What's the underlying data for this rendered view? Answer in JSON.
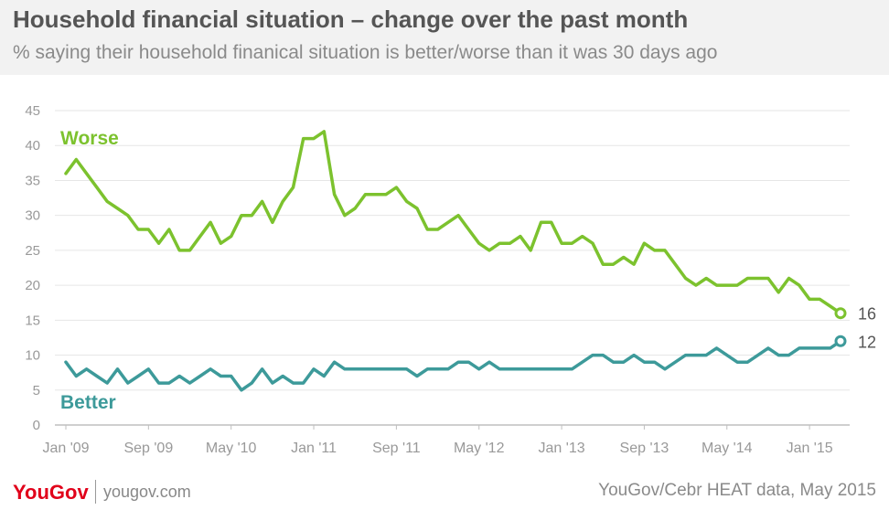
{
  "header": {
    "title": "Household financial situation – change over the past month",
    "subtitle": "% saying their household finanical situation is better/worse than it was 30 days ago"
  },
  "footer": {
    "logo": "YouGov",
    "site": "yougov.com",
    "source": "YouGov/Cebr HEAT data, May 2015"
  },
  "colors": {
    "worse": "#7cc22e",
    "better": "#3d9a9a",
    "grid": "#e6e6e6",
    "axis_text": "#999999"
  },
  "chart_data": {
    "type": "line",
    "x_tick_labels": [
      "Jan '09",
      "Sep '09",
      "May '10",
      "Jan '11",
      "Sep '11",
      "May '12",
      "Jan '13",
      "Sep '13",
      "May '14",
      "Jan '15"
    ],
    "x_start": "Jan 2009",
    "x_end": "May 2015",
    "ylim": [
      0,
      45
    ],
    "y_ticks": [
      0,
      5,
      10,
      15,
      20,
      25,
      30,
      35,
      40,
      45
    ],
    "grid": true,
    "series": [
      {
        "name": "Worse",
        "color": "#7cc22e",
        "end_label": "16",
        "values": [
          36,
          38,
          36,
          34,
          32,
          31,
          30,
          28,
          28,
          26,
          28,
          25,
          25,
          27,
          29,
          26,
          27,
          30,
          30,
          32,
          29,
          32,
          34,
          41,
          41,
          42,
          33,
          30,
          31,
          33,
          33,
          33,
          34,
          32,
          31,
          28,
          28,
          29,
          30,
          28,
          26,
          25,
          26,
          26,
          27,
          25,
          29,
          29,
          26,
          26,
          27,
          26,
          23,
          23,
          24,
          23,
          26,
          25,
          25,
          23,
          21,
          20,
          21,
          20,
          20,
          20,
          21,
          21,
          21,
          19,
          21,
          20,
          18,
          18,
          17,
          16
        ]
      },
      {
        "name": "Better",
        "color": "#3d9a9a",
        "end_label": "12",
        "values": [
          9,
          7,
          8,
          7,
          6,
          8,
          6,
          7,
          8,
          6,
          6,
          7,
          6,
          7,
          8,
          7,
          7,
          5,
          6,
          8,
          6,
          7,
          6,
          6,
          8,
          7,
          9,
          8,
          8,
          8,
          8,
          8,
          8,
          8,
          7,
          8,
          8,
          8,
          9,
          9,
          8,
          9,
          8,
          8,
          8,
          8,
          8,
          8,
          8,
          8,
          9,
          10,
          10,
          9,
          9,
          10,
          9,
          9,
          8,
          9,
          10,
          10,
          10,
          11,
          10,
          9,
          9,
          10,
          11,
          10,
          10,
          11,
          11,
          11,
          11,
          12
        ]
      }
    ]
  }
}
